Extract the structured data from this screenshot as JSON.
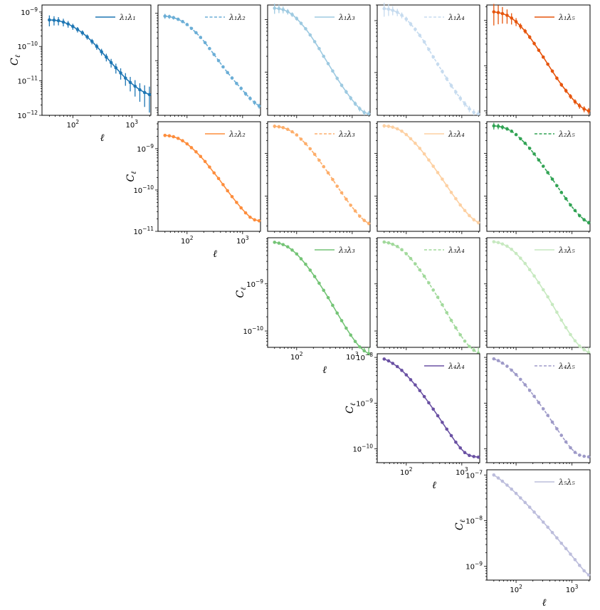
{
  "chart_data": {
    "type": "line",
    "layout": "upper-triangular grid of cross power spectra, log-log axes",
    "xlabel": "ℓ",
    "ylabel": "C_ℓ",
    "x_scale": "log",
    "y_scale": "log",
    "xlim": [
      30,
      2100
    ],
    "x_tick_labels": [
      "10^2",
      "10^3"
    ],
    "legend_loc": "upper right",
    "x": [
      40,
      48,
      57,
      69,
      83,
      100,
      120,
      145,
      175,
      211,
      254,
      306,
      369,
      445,
      536,
      646,
      779,
      939,
      1132,
      1364,
      1645,
      1983
    ],
    "panels": [
      {
        "row": 1,
        "col": 1,
        "label": "λ₁λ₁",
        "color": "#1f77b4",
        "dashed": false,
        "show_y": true,
        "show_x": true,
        "ylim": [
          1e-12,
          1.6e-09
        ],
        "y_tick_labels": [
          "10^-12",
          "10^-11",
          "10^-10",
          "10^-9"
        ],
        "values": [
          5.9e-10,
          5.8e-10,
          5.6e-10,
          5.1e-10,
          4.5e-10,
          3.8e-10,
          3.1e-10,
          2.5e-10,
          1.9e-10,
          1.4e-10,
          1e-10,
          7e-11,
          4.9e-11,
          3.4e-11,
          2.4e-11,
          1.7e-11,
          1.2e-11,
          9e-12,
          7e-12,
          5.5e-12,
          4.6e-12,
          4e-12
        ],
        "errors": [
          0.35,
          0.3,
          0.27,
          0.25,
          0.22,
          0.2,
          0.18,
          0.17,
          0.17,
          0.18,
          0.2,
          0.22,
          0.25,
          0.28,
          0.32,
          0.36,
          0.4,
          0.45,
          0.5,
          0.55,
          0.62,
          0.7
        ]
      },
      {
        "row": 1,
        "col": 2,
        "label": "λ₁λ₂",
        "color": "#6baed6",
        "dashed": true,
        "show_y": false,
        "show_x": false,
        "ylim": [
          7e-12,
          1.5e-09
        ],
        "values": [
          8.7e-10,
          8.5e-10,
          8.1e-10,
          7.5e-10,
          6.7e-10,
          5.8e-10,
          4.8e-10,
          3.9e-10,
          3.1e-10,
          2.4e-10,
          1.8e-10,
          1.35e-10,
          1e-10,
          7.4e-11,
          5.6e-11,
          4.3e-11,
          3.3e-11,
          2.6e-11,
          2e-11,
          1.6e-11,
          1.3e-11,
          1.1e-11
        ],
        "errors": [
          0.12,
          0.1,
          0.09,
          0.08,
          0.07,
          0.06,
          0.06,
          0.05,
          0.05,
          0.05,
          0.05,
          0.06,
          0.06,
          0.07,
          0.07,
          0.08,
          0.08,
          0.09,
          0.1,
          0.1,
          0.11,
          0.12
        ]
      },
      {
        "row": 1,
        "col": 3,
        "label": "λ₁λ₃",
        "color": "#9ecae1",
        "dashed": false,
        "show_y": false,
        "show_x": false,
        "ylim": [
          1.5e-11,
          1.9e-09
        ],
        "values": [
          1.65e-09,
          1.62e-09,
          1.55e-09,
          1.42e-09,
          1.25e-09,
          1.05e-09,
          8.5e-10,
          6.7e-10,
          5.1e-10,
          3.8e-10,
          2.8e-10,
          2e-10,
          1.45e-10,
          1.05e-10,
          7.6e-11,
          5.6e-11,
          4.2e-11,
          3.2e-11,
          2.5e-11,
          2e-11,
          1.7e-11,
          1.6e-11
        ],
        "errors": [
          0.22,
          0.18,
          0.15,
          0.12,
          0.1,
          0.09,
          0.08,
          0.07,
          0.06,
          0.06,
          0.06,
          0.06,
          0.07,
          0.07,
          0.08,
          0.08,
          0.09,
          0.1,
          0.1,
          0.11,
          0.12,
          0.14
        ]
      },
      {
        "row": 1,
        "col": 4,
        "label": "λ₁λ₄",
        "color": "#c6dbef",
        "dashed": true,
        "show_y": false,
        "show_x": false,
        "ylim": [
          1.5e-11,
          2e-09
        ],
        "values": [
          1.7e-09,
          1.66e-09,
          1.58e-09,
          1.45e-09,
          1.27e-09,
          1.07e-09,
          8.6e-10,
          6.8e-10,
          5.2e-10,
          3.9e-10,
          2.8e-10,
          2e-10,
          1.45e-10,
          1.05e-10,
          7.6e-11,
          5.6e-11,
          4.2e-11,
          3.2e-11,
          2.5e-11,
          2e-11,
          1.7e-11,
          1.6e-11
        ],
        "errors": [
          0.3,
          0.26,
          0.2,
          0.16,
          0.13,
          0.11,
          0.1,
          0.09,
          0.08,
          0.08,
          0.08,
          0.08,
          0.09,
          0.09,
          0.1,
          0.1,
          0.11,
          0.12,
          0.13,
          0.14,
          0.15,
          0.17
        ]
      },
      {
        "row": 1,
        "col": 5,
        "label": "λ₁λ₅",
        "color": "#e6550d",
        "dashed": false,
        "show_y": false,
        "show_x": false,
        "ylim": [
          8e-12,
          2.2e-09
        ],
        "values": [
          1.55e-09,
          1.5e-09,
          1.42e-09,
          1.3e-09,
          1.13e-09,
          9.4e-10,
          7.5e-10,
          5.8e-10,
          4.3e-10,
          3.1e-10,
          2.2e-10,
          1.55e-10,
          1.08e-10,
          7.6e-11,
          5.3e-11,
          3.8e-11,
          2.8e-11,
          2.1e-11,
          1.6e-11,
          1.3e-11,
          1.1e-11,
          1e-11
        ],
        "errors": [
          0.5,
          0.45,
          0.4,
          0.35,
          0.28,
          0.2,
          0.15,
          0.12,
          0.1,
          0.09,
          0.08,
          0.08,
          0.08,
          0.09,
          0.09,
          0.1,
          0.11,
          0.12,
          0.13,
          0.14,
          0.15,
          0.16
        ]
      },
      {
        "row": 2,
        "col": 2,
        "label": "λ₂λ₂",
        "color": "#fd8d3c",
        "dashed": false,
        "show_y": true,
        "show_x": true,
        "ylim": [
          1e-11,
          4.5e-09
        ],
        "y_tick_labels": [
          "10^-11",
          "10^-10",
          "10^-9"
        ],
        "values": [
          2.1e-09,
          2.05e-09,
          1.95e-09,
          1.78e-09,
          1.56e-09,
          1.31e-09,
          1.06e-09,
          8.4e-10,
          6.5e-10,
          4.9e-10,
          3.6e-10,
          2.6e-10,
          1.9e-10,
          1.35e-10,
          9.6e-11,
          6.9e-11,
          5e-11,
          3.7e-11,
          2.8e-11,
          2.2e-11,
          1.9e-11,
          1.8e-11
        ],
        "errors": [
          0.09,
          0.08,
          0.07,
          0.06,
          0.05,
          0.05,
          0.04,
          0.04,
          0.04,
          0.04,
          0.04,
          0.04,
          0.05,
          0.05,
          0.05,
          0.06,
          0.06,
          0.07,
          0.07,
          0.08,
          0.08,
          0.09
        ]
      },
      {
        "row": 2,
        "col": 3,
        "label": "λ₂λ₃",
        "color": "#fdae6b",
        "dashed": true,
        "show_y": false,
        "show_x": false,
        "ylim": [
          1.5e-11,
          5.5e-09
        ],
        "values": [
          4.3e-09,
          4.2e-09,
          4e-09,
          3.65e-09,
          3.2e-09,
          2.7e-09,
          2.15e-09,
          1.68e-09,
          1.28e-09,
          9.5e-10,
          6.9e-10,
          4.9e-10,
          3.5e-10,
          2.45e-10,
          1.7e-10,
          1.2e-10,
          8.5e-11,
          6.1e-11,
          4.5e-11,
          3.4e-11,
          2.7e-11,
          2.3e-11
        ],
        "errors": [
          0.1,
          0.09,
          0.08,
          0.07,
          0.06,
          0.05,
          0.05,
          0.05,
          0.04,
          0.04,
          0.04,
          0.05,
          0.05,
          0.05,
          0.06,
          0.06,
          0.07,
          0.07,
          0.08,
          0.08,
          0.09,
          0.1
        ]
      },
      {
        "row": 2,
        "col": 4,
        "label": "λ₂λ₄",
        "color": "#fdd0a2",
        "dashed": false,
        "show_y": false,
        "show_x": false,
        "ylim": [
          1.5e-11,
          5.5e-09
        ],
        "values": [
          4.4e-09,
          4.3e-09,
          4.1e-09,
          3.75e-09,
          3.3e-09,
          2.75e-09,
          2.2e-09,
          1.72e-09,
          1.31e-09,
          9.7e-10,
          7e-10,
          5e-10,
          3.55e-10,
          2.5e-10,
          1.75e-10,
          1.22e-10,
          8.7e-11,
          6.2e-11,
          4.6e-11,
          3.5e-11,
          2.8e-11,
          2.4e-11
        ],
        "errors": [
          0.1,
          0.09,
          0.08,
          0.07,
          0.06,
          0.05,
          0.05,
          0.05,
          0.04,
          0.04,
          0.04,
          0.05,
          0.05,
          0.05,
          0.06,
          0.06,
          0.07,
          0.07,
          0.08,
          0.08,
          0.09,
          0.1
        ]
      },
      {
        "row": 2,
        "col": 5,
        "label": "λ₂λ₅",
        "color": "#31a354",
        "dashed": true,
        "show_y": false,
        "show_x": false,
        "ylim": [
          1.5e-11,
          5.5e-09
        ],
        "values": [
          4.4e-09,
          4.3e-09,
          4.1e-09,
          3.75e-09,
          3.3e-09,
          2.75e-09,
          2.2e-09,
          1.72e-09,
          1.31e-09,
          9.7e-10,
          7e-10,
          5e-10,
          3.55e-10,
          2.5e-10,
          1.75e-10,
          1.22e-10,
          8.7e-11,
          6.2e-11,
          4.6e-11,
          3.5e-11,
          2.8e-11,
          2.4e-11
        ],
        "errors": [
          0.18,
          0.15,
          0.12,
          0.1,
          0.08,
          0.07,
          0.06,
          0.05,
          0.05,
          0.05,
          0.05,
          0.05,
          0.06,
          0.06,
          0.06,
          0.07,
          0.07,
          0.08,
          0.08,
          0.09,
          0.09,
          0.1
        ]
      },
      {
        "row": 3,
        "col": 3,
        "label": "λ₃λ₃",
        "color": "#74c476",
        "dashed": false,
        "show_y": true,
        "show_x": true,
        "ylim": [
          4.5e-11,
          9.5e-09
        ],
        "y_tick_labels": [
          "10^-10",
          "10^-9"
        ],
        "values": [
          7.6e-09,
          7.3e-09,
          6.8e-09,
          6.1e-09,
          5.2e-09,
          4.3e-09,
          3.4e-09,
          2.6e-09,
          1.95e-09,
          1.43e-09,
          1.03e-09,
          7.3e-10,
          5.1e-10,
          3.5e-10,
          2.4e-10,
          1.66e-10,
          1.15e-10,
          8.2e-11,
          6e-11,
          4.6e-11,
          3.8e-11,
          3.3e-11
        ],
        "errors": [
          0.06,
          0.05,
          0.05,
          0.04,
          0.04,
          0.04,
          0.03,
          0.03,
          0.03,
          0.03,
          0.03,
          0.03,
          0.04,
          0.04,
          0.04,
          0.05,
          0.05,
          0.05,
          0.06,
          0.06,
          0.07,
          0.07
        ]
      },
      {
        "row": 3,
        "col": 4,
        "label": "λ₃λ₄",
        "color": "#a1d99b",
        "dashed": true,
        "show_y": false,
        "show_x": false,
        "ylim": [
          4.5e-11,
          9.5e-09
        ],
        "values": [
          7.7e-09,
          7.4e-09,
          6.9e-09,
          6.2e-09,
          5.3e-09,
          4.35e-09,
          3.45e-09,
          2.65e-09,
          1.98e-09,
          1.45e-09,
          1.05e-09,
          7.4e-10,
          5.2e-10,
          3.6e-10,
          2.45e-10,
          1.68e-10,
          1.17e-10,
          8.3e-11,
          6.1e-11,
          4.7e-11,
          3.9e-11,
          3.4e-11
        ],
        "errors": [
          0.06,
          0.05,
          0.05,
          0.04,
          0.04,
          0.04,
          0.03,
          0.03,
          0.03,
          0.03,
          0.03,
          0.03,
          0.04,
          0.04,
          0.04,
          0.05,
          0.05,
          0.05,
          0.06,
          0.06,
          0.07,
          0.07
        ]
      },
      {
        "row": 3,
        "col": 5,
        "label": "λ₃λ₅",
        "color": "#c7e9c0",
        "dashed": false,
        "show_y": false,
        "show_x": false,
        "ylim": [
          4.5e-11,
          9.5e-09
        ],
        "values": [
          7.8e-09,
          7.5e-09,
          7e-09,
          6.3e-09,
          5.4e-09,
          4.4e-09,
          3.5e-09,
          2.7e-09,
          2e-09,
          1.47e-09,
          1.06e-09,
          7.5e-10,
          5.3e-10,
          3.65e-10,
          2.5e-10,
          1.7e-10,
          1.18e-10,
          8.4e-11,
          6.2e-11,
          4.8e-11,
          4e-11,
          3.5e-11
        ],
        "errors": [
          0.06,
          0.05,
          0.05,
          0.04,
          0.04,
          0.04,
          0.03,
          0.03,
          0.03,
          0.03,
          0.03,
          0.03,
          0.04,
          0.04,
          0.04,
          0.05,
          0.05,
          0.05,
          0.06,
          0.06,
          0.07,
          0.07
        ]
      },
      {
        "row": 4,
        "col": 4,
        "label": "λ₄λ₄",
        "color": "#6a51a3",
        "dashed": false,
        "show_y": true,
        "show_x": true,
        "ylim": [
          5e-11,
          1.2e-08
        ],
        "y_tick_labels": [
          "10^-10",
          "10^-9",
          "10^-8"
        ],
        "values": [
          9.2e-09,
          8.4e-09,
          7.4e-09,
          6.3e-09,
          5.2e-09,
          4.15e-09,
          3.25e-09,
          2.5e-09,
          1.88e-09,
          1.39e-09,
          1.02e-09,
          7.4e-10,
          5.3e-10,
          3.8e-10,
          2.7e-10,
          1.95e-10,
          1.4e-10,
          1.05e-10,
          8.3e-11,
          7.2e-11,
          6.8e-11,
          6.6e-11
        ],
        "errors": [
          0.05,
          0.04,
          0.04,
          0.04,
          0.03,
          0.03,
          0.03,
          0.03,
          0.03,
          0.03,
          0.03,
          0.03,
          0.03,
          0.03,
          0.04,
          0.04,
          0.04,
          0.04,
          0.05,
          0.05,
          0.05,
          0.06
        ]
      },
      {
        "row": 4,
        "col": 5,
        "label": "λ₄λ₅",
        "color": "#9e9ac8",
        "dashed": true,
        "show_y": false,
        "show_x": false,
        "ylim": [
          5e-11,
          1.2e-08
        ],
        "values": [
          9.3e-09,
          8.5e-09,
          7.5e-09,
          6.4e-09,
          5.25e-09,
          4.2e-09,
          3.3e-09,
          2.52e-09,
          1.9e-09,
          1.41e-09,
          1.03e-09,
          7.5e-10,
          5.4e-10,
          3.85e-10,
          2.75e-10,
          1.98e-10,
          1.42e-10,
          1.06e-10,
          8.4e-11,
          7.3e-11,
          6.9e-11,
          6.7e-11
        ],
        "errors": [
          0.05,
          0.04,
          0.04,
          0.04,
          0.03,
          0.03,
          0.03,
          0.03,
          0.03,
          0.03,
          0.03,
          0.03,
          0.03,
          0.03,
          0.04,
          0.04,
          0.04,
          0.04,
          0.05,
          0.05,
          0.05,
          0.06
        ]
      },
      {
        "row": 5,
        "col": 5,
        "label": "λ₅λ₅",
        "color": "#bcbddc",
        "dashed": false,
        "show_y": true,
        "show_x": true,
        "ylim": [
          5e-10,
          1.3e-07
        ],
        "y_tick_labels": [
          "10^-9",
          "10^-8",
          "10^-7"
        ],
        "values": [
          1e-07,
          8.6e-08,
          7.3e-08,
          6e-08,
          4.9e-08,
          3.95e-08,
          3.15e-08,
          2.5e-08,
          1.97e-08,
          1.54e-08,
          1.2e-08,
          9.3e-09,
          7.2e-09,
          5.5e-09,
          4.2e-09,
          3.2e-09,
          2.45e-09,
          1.85e-09,
          1.4e-09,
          1.05e-09,
          8e-10,
          6.5e-10
        ],
        "errors": [
          0.04,
          0.04,
          0.03,
          0.03,
          0.03,
          0.03,
          0.03,
          0.03,
          0.03,
          0.03,
          0.03,
          0.03,
          0.03,
          0.03,
          0.03,
          0.03,
          0.03,
          0.04,
          0.04,
          0.04,
          0.04,
          0.05
        ]
      }
    ]
  }
}
